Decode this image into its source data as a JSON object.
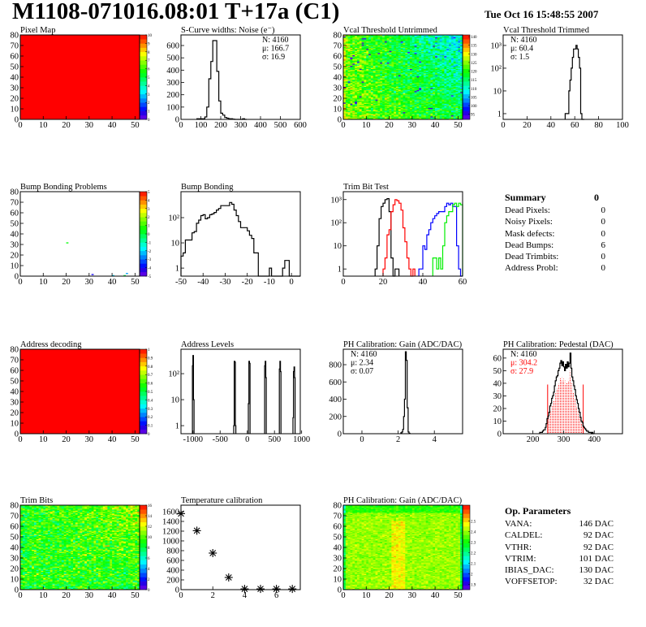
{
  "header": {
    "title": "M1108-071016.08:01 T+17a (C1)",
    "date": "Tue Oct 16 15:48:55 2007"
  },
  "summary": {
    "title": "Summary",
    "total": "0",
    "rows": [
      {
        "label": "Dead Pixels:",
        "value": "0"
      },
      {
        "label": "Noisy Pixels:",
        "value": "0"
      },
      {
        "label": "Mask defects:",
        "value": "0"
      },
      {
        "label": "Dead Bumps:",
        "value": "6"
      },
      {
        "label": "Dead Trimbits:",
        "value": "0"
      },
      {
        "label": "Address Probl:",
        "value": "0"
      }
    ]
  },
  "op_parameters": {
    "title": "Op. Parameters",
    "rows": [
      {
        "label": "VANA:",
        "value": "146 DAC"
      },
      {
        "label": "CALDEL:",
        "value": "92 DAC"
      },
      {
        "label": "VTHR:",
        "value": "92 DAC"
      },
      {
        "label": "VTRIM:",
        "value": "101 DAC"
      },
      {
        "label": "IBIAS_DAC:",
        "value": "130 DAC"
      },
      {
        "label": "VOFFSETOP:",
        "value": "32 DAC"
      }
    ]
  },
  "chart_data": [
    {
      "type": "heatmap",
      "title": "Pixel Map",
      "xlim": [
        0,
        52
      ],
      "ylim": [
        0,
        80
      ],
      "xticks": [
        0,
        10,
        20,
        30,
        40,
        50
      ],
      "yticks": [
        0,
        10,
        20,
        30,
        40,
        50,
        60,
        70,
        80
      ],
      "zlim": [
        0,
        10
      ],
      "zticks": [
        0,
        1,
        2,
        3,
        4,
        5,
        6,
        7,
        8,
        9,
        10
      ],
      "uniform_value": 10
    },
    {
      "type": "bar",
      "title": "S-Curve widths: Noise (e⁻)",
      "xlim": [
        0,
        600
      ],
      "ylim": [
        0,
        686
      ],
      "yscale": "linear",
      "xticks": [
        0,
        100,
        200,
        300,
        400,
        500,
        600
      ],
      "yticks": [
        0,
        100,
        200,
        300,
        400,
        500,
        600
      ],
      "bin_start": 80,
      "bin_width": 10,
      "counts": [
        5,
        5,
        5,
        5,
        20,
        100,
        330,
        470,
        640,
        640,
        390,
        150,
        50,
        35,
        15,
        10,
        5,
        5,
        2,
        0,
        0,
        0,
        0,
        5,
        0
      ],
      "stats": {
        "N": "N: 4160",
        "mean": "μ: 166.7",
        "sigma": "σ: 16.9"
      },
      "stats_pos": "right"
    },
    {
      "type": "heatmap",
      "title": "Vcal Threshold Untrimmed",
      "xlim": [
        0,
        52
      ],
      "ylim": [
        0,
        80
      ],
      "xticks": [
        0,
        10,
        20,
        30,
        40,
        50
      ],
      "yticks": [
        0,
        10,
        20,
        30,
        40,
        50,
        60,
        70,
        80
      ],
      "zlim": [
        92,
        141
      ],
      "zticks": [
        95,
        100,
        105,
        110,
        115,
        120,
        125,
        130,
        135,
        140
      ]
    },
    {
      "type": "bar",
      "title": "Vcal Threshold Trimmed",
      "xlim": [
        0,
        100
      ],
      "ylim": [
        0.56,
        2900
      ],
      "yscale": "log",
      "xticks": [
        0,
        20,
        40,
        60,
        80,
        100
      ],
      "yticks": [
        1,
        10,
        100,
        1000
      ],
      "ytick_labels": [
        "1",
        "10",
        "10²",
        "10³"
      ],
      "bin_start": 52,
      "bin_width": 1,
      "counts": [
        1,
        1,
        1,
        10,
        30,
        100,
        300,
        700,
        700,
        1000,
        700,
        300,
        100,
        1,
        0,
        0
      ],
      "stats": {
        "N": "N: 4160",
        "mean": "μ: 60.4",
        "sigma": "σ:  1.5"
      },
      "stats_pos": "left"
    },
    {
      "type": "heatmap",
      "title": "Bump Bonding Problems",
      "xlim": [
        0,
        52
      ],
      "ylim": [
        0,
        80
      ],
      "xticks": [
        0,
        10,
        20,
        30,
        40,
        50
      ],
      "yticks": [
        0,
        10,
        20,
        30,
        40,
        50,
        60,
        70,
        80
      ],
      "zlim": [
        -5,
        5
      ],
      "zticks": [
        -5,
        -4,
        -3,
        -2,
        -1,
        0,
        1,
        2,
        3,
        4,
        5
      ],
      "cells": [
        {
          "x": 20,
          "y": 31,
          "z": 0.5
        },
        {
          "x": 31,
          "y": 1,
          "z": -4
        },
        {
          "x": 40,
          "y": 0,
          "z": -2
        },
        {
          "x": 45,
          "y": 0,
          "z": 0
        },
        {
          "x": 46,
          "y": 2,
          "z": -2.5
        }
      ]
    },
    {
      "type": "bar",
      "title": "Bump Bonding",
      "xlim": [
        -50,
        4
      ],
      "ylim": [
        0.48,
        1070
      ],
      "yscale": "log",
      "xticks": [
        -50,
        -40,
        -30,
        -20,
        -10,
        0
      ],
      "yticks": [
        1,
        10,
        100
      ],
      "ytick_labels": [
        "1",
        "10",
        "10²"
      ],
      "bin_start": -50,
      "bin_width": 1,
      "counts": [
        3,
        4,
        13,
        13,
        13,
        25,
        28,
        60,
        80,
        120,
        130,
        90,
        100,
        130,
        140,
        160,
        200,
        230,
        300,
        300,
        300,
        300,
        400,
        340,
        200,
        120,
        70,
        40,
        40,
        40,
        30,
        20,
        15,
        4,
        4,
        0,
        0,
        0,
        0,
        0,
        1,
        0,
        0,
        0,
        0,
        0,
        1,
        2,
        2,
        0,
        0,
        0,
        0,
        0
      ]
    },
    {
      "type": "bar",
      "title": "Trim Bit Test",
      "xlim": [
        0,
        60
      ],
      "ylim": [
        0.49,
        2200
      ],
      "yscale": "log",
      "xticks": [
        0,
        20,
        40,
        60
      ],
      "yticks": [
        1,
        10,
        100,
        1000
      ],
      "ytick_labels": [
        "1",
        "10",
        "10²",
        "10³"
      ],
      "series": [
        {
          "color": "#000000",
          "bin_start": 16,
          "bin_width": 1,
          "counts": [
            1,
            10,
            150,
            500,
            700,
            1000,
            1100,
            300,
            3,
            0,
            1,
            1
          ]
        },
        {
          "color": "#ff0000",
          "bin_start": 20,
          "bin_width": 1,
          "counts": [
            1,
            3,
            30,
            50,
            300,
            600,
            1000,
            900,
            700,
            350,
            60,
            15,
            3,
            1,
            0,
            1
          ]
        },
        {
          "color": "#0000ff",
          "bin_start": 38,
          "bin_width": 1,
          "counts": [
            1,
            1,
            10,
            7,
            30,
            50,
            100,
            150,
            200,
            250,
            300,
            300,
            300,
            500,
            700,
            600,
            700,
            500,
            500,
            10,
            1,
            0
          ]
        },
        {
          "color": "#00ee00",
          "bin_start": 45,
          "bin_width": 1,
          "counts": [
            3,
            3,
            1,
            3,
            1,
            10,
            100,
            200,
            300,
            300,
            600,
            700,
            500,
            700,
            600
          ]
        }
      ]
    },
    {
      "type": "heatmap",
      "title": "Address decoding",
      "xlim": [
        0,
        52
      ],
      "ylim": [
        0,
        80
      ],
      "xticks": [
        0,
        10,
        20,
        30,
        40,
        50
      ],
      "yticks": [
        0,
        10,
        20,
        30,
        40,
        50,
        60,
        70,
        80
      ],
      "zlim": [
        0,
        1
      ],
      "zticks": [
        0,
        0.1,
        0.2,
        0.3,
        0.4,
        0.5,
        0.6,
        0.7,
        0.8,
        0.9,
        1
      ],
      "uniform_value": 1
    },
    {
      "type": "bar",
      "title": "Address Levels",
      "xlim": [
        -1220,
        975
      ],
      "ylim": [
        0.49,
        870
      ],
      "yscale": "log",
      "xticks": [
        -1000,
        -500,
        0,
        500,
        1000
      ],
      "yticks": [
        1,
        10,
        100
      ],
      "ytick_labels": [
        "1",
        "10",
        "10²"
      ],
      "peaks": [
        {
          "bin_start": -1010,
          "counts": [
            200,
            500,
            10
          ]
        },
        {
          "bin_start": -250,
          "counts": [
            1,
            300,
            280,
            1
          ]
        },
        {
          "bin_start": 20,
          "counts": [
            7,
            300,
            250
          ]
        },
        {
          "bin_start": 320,
          "counts": [
            200,
            300,
            70
          ]
        },
        {
          "bin_start": 590,
          "counts": [
            150,
            300,
            120
          ]
        },
        {
          "bin_start": 840,
          "counts": [
            2,
            120,
            180,
            70
          ]
        }
      ],
      "bin_width": 10
    },
    {
      "type": "bar",
      "title": "PH Calibration: Gain (ADC/DAC)",
      "xlim": [
        -1.03,
        5.56
      ],
      "ylim": [
        0,
        979
      ],
      "yscale": "linear",
      "xticks": [
        0,
        2,
        4
      ],
      "yticks": [
        0,
        200,
        400,
        600,
        800
      ],
      "bin_start": 2.15,
      "bin_width": 0.05,
      "counts": [
        10,
        20,
        50,
        200,
        400,
        950,
        850,
        300,
        20,
        5
      ],
      "stats": {
        "N": "N: 4160",
        "mean": "μ: 2.34",
        "sigma": "σ: 0.07"
      },
      "stats_pos": "left"
    },
    {
      "type": "bar",
      "title": "PH Calibration: Pedestal (DAC)",
      "xlim": [
        103,
        492
      ],
      "ylim": [
        0,
        67
      ],
      "yscale": "linear",
      "xticks": [
        200,
        300,
        400
      ],
      "yticks": [
        0,
        10,
        20,
        30,
        40,
        50,
        60
      ],
      "bin_start": 222,
      "bin_width": 3,
      "counts": [
        1,
        1,
        1,
        2,
        3,
        3,
        5,
        8,
        12,
        14,
        17,
        22,
        24,
        28,
        30,
        33,
        38,
        42,
        45,
        46,
        50,
        52,
        56,
        58,
        54,
        57,
        53,
        50,
        55,
        52,
        57,
        53,
        56,
        64,
        52,
        45,
        42,
        38,
        35,
        30,
        27,
        24,
        20,
        17,
        13,
        10,
        9,
        6,
        5,
        4,
        3,
        2,
        2,
        1,
        1,
        1,
        0,
        1,
        0
      ],
      "fit_range": [
        248,
        364
      ],
      "fit_color": "#ff0000",
      "stats": {
        "N": "N: 4160",
        "mean": "μ: 304.2",
        "sigma": "σ: 27.9"
      },
      "stats_pos": "left"
    },
    {
      "type": "heatmap",
      "title": "Trim Bits",
      "xlim": [
        0,
        52
      ],
      "ylim": [
        0,
        80
      ],
      "xticks": [
        0,
        10,
        20,
        30,
        40,
        50
      ],
      "yticks": [
        0,
        10,
        20,
        30,
        40,
        50,
        60,
        70,
        80
      ],
      "zlim": [
        0,
        16
      ],
      "zticks": [
        0,
        2,
        4,
        6,
        8,
        10,
        12,
        14,
        16
      ]
    },
    {
      "type": "scatter",
      "title": "Temperature calibration",
      "xlim": [
        0,
        7.5
      ],
      "ylim": [
        0,
        1733
      ],
      "xticks": [
        0,
        2,
        4,
        6
      ],
      "yticks": [
        0,
        200,
        400,
        600,
        800,
        1000,
        1200,
        1400,
        1600
      ],
      "x": [
        0,
        1,
        2,
        3,
        4,
        5,
        6,
        7
      ],
      "y": [
        1560,
        1210,
        750,
        250,
        15,
        15,
        15,
        15
      ]
    },
    {
      "type": "heatmap",
      "title": "PH Calibration: Gain (ADC/DAC)",
      "xlim": [
        0,
        52
      ],
      "ylim": [
        0,
        80
      ],
      "xticks": [
        0,
        10,
        20,
        30,
        40,
        50
      ],
      "yticks": [
        0,
        10,
        20,
        30,
        40,
        50,
        60,
        70,
        80
      ],
      "zlim": [
        1.85,
        2.65
      ],
      "zticks": [
        1.9,
        2,
        2.1,
        2.2,
        2.3,
        2.4,
        2.5
      ],
      "ztick_labels": [
        "1.9",
        "2",
        "2.1",
        "2.2",
        "2.3",
        "2.4",
        "2.5"
      ]
    }
  ]
}
